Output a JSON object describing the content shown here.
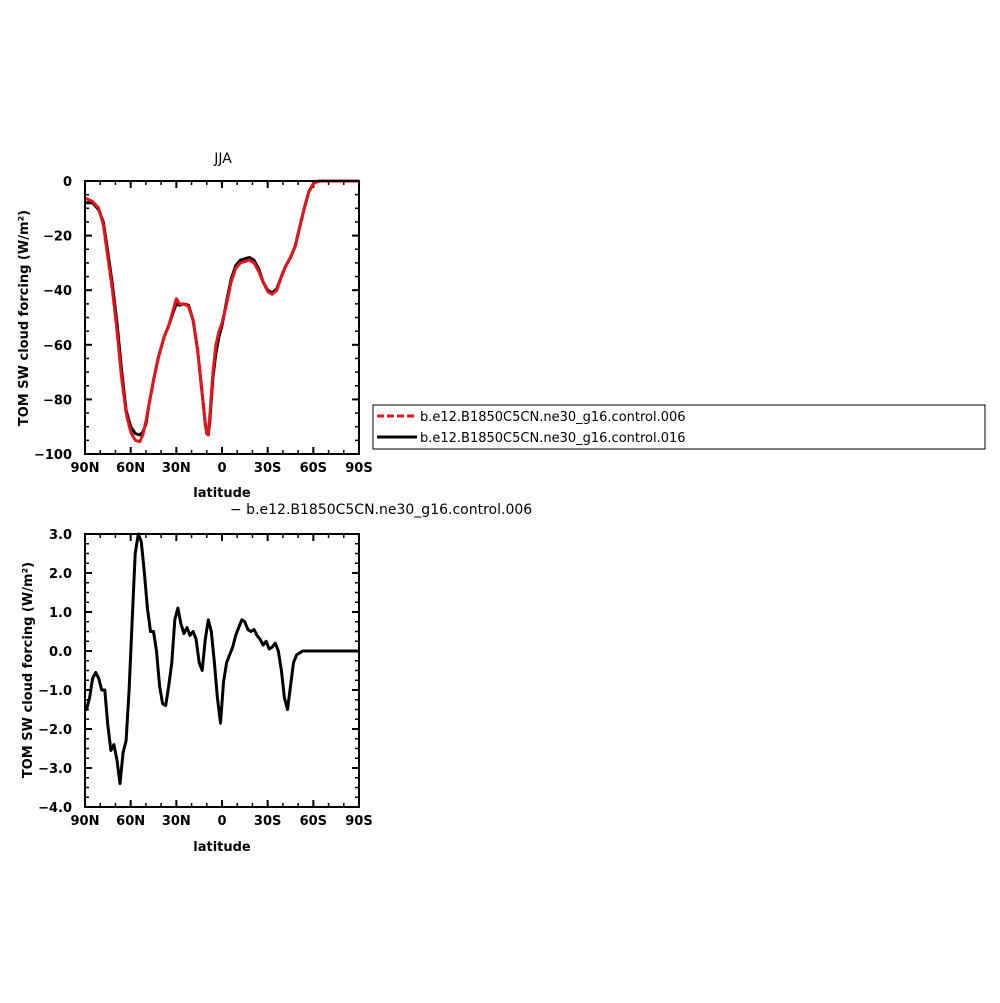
{
  "chart_data": [
    {
      "type": "line",
      "title": "JJA",
      "xlabel": "latitude",
      "ylabel": "TOM SW cloud forcing (W/m²)",
      "xlim": [
        90,
        -90
      ],
      "ylim": [
        -100,
        0
      ],
      "x_tick_values": [
        90,
        60,
        30,
        0,
        -30,
        -60,
        -90
      ],
      "x_tick_labels": [
        "90N",
        "60N",
        "30N",
        "0",
        "30S",
        "60S",
        "90S"
      ],
      "y_tick_values": [
        0,
        -20,
        -40,
        -60,
        -80,
        -100
      ],
      "y_tick_labels": [
        "0",
        "−20",
        "−40",
        "−60",
        "−80",
        "−100"
      ],
      "grid": false,
      "legend_position": "right",
      "series": [
        {
          "name": "b.e12.B1850C5CN.ne30_g16.control.006",
          "color": "#e8141c",
          "dashed": true,
          "x": [
            89,
            85,
            81,
            78,
            75,
            72,
            69,
            66,
            63,
            60,
            57,
            54,
            52,
            50,
            48,
            45,
            42,
            38,
            35,
            32,
            30,
            28,
            25,
            22,
            19,
            16,
            13,
            11,
            10,
            9,
            8,
            6,
            4,
            2,
            0,
            -3,
            -6,
            -9,
            -12,
            -15,
            -18,
            -21,
            -24,
            -27,
            -30,
            -33,
            -36,
            -39,
            -42,
            -45,
            -48,
            -51,
            -54,
            -57,
            -60,
            -62,
            -64,
            -66,
            -70,
            -75,
            -80,
            -85,
            -89
          ],
          "y": [
            -6.5,
            -7.5,
            -10,
            -16,
            -28,
            -40,
            -55,
            -72,
            -85,
            -92,
            -95,
            -95.5,
            -93,
            -88,
            -82,
            -73,
            -65,
            -57,
            -53,
            -47,
            -43,
            -45,
            -45,
            -46,
            -51,
            -62,
            -78,
            -89,
            -92,
            -93,
            -86,
            -70,
            -60,
            -55,
            -52,
            -45,
            -37,
            -32,
            -30,
            -29.5,
            -29,
            -30,
            -33,
            -37,
            -40.5,
            -41.5,
            -40,
            -35,
            -31,
            -28,
            -24,
            -17,
            -10,
            -4,
            -1,
            -0.3,
            0,
            0,
            0,
            0,
            0,
            0,
            0
          ]
        },
        {
          "name": "b.e12.B1850C5CN.ne30_g16.control.016",
          "color": "#000000",
          "dashed": false,
          "x": [
            89,
            85,
            81,
            78,
            75,
            72,
            69,
            66,
            63,
            60,
            57,
            54,
            52,
            50,
            48,
            45,
            42,
            38,
            35,
            32,
            30,
            28,
            25,
            22,
            19,
            16,
            13,
            11,
            10,
            9,
            8,
            6,
            4,
            2,
            0,
            -3,
            -6,
            -9,
            -12,
            -15,
            -18,
            -21,
            -24,
            -27,
            -30,
            -33,
            -36,
            -39,
            -42,
            -45,
            -48,
            -51,
            -54,
            -57,
            -60,
            -62,
            -64,
            -66,
            -70,
            -75,
            -80,
            -85,
            -89
          ],
          "y": [
            -8,
            -8,
            -10.5,
            -15,
            -26,
            -38,
            -52,
            -69,
            -84,
            -90,
            -92.5,
            -93,
            -92,
            -89,
            -82,
            -73,
            -65,
            -57,
            -53,
            -48,
            -45,
            -45.5,
            -45,
            -45.5,
            -51,
            -62,
            -78,
            -89,
            -92.5,
            -93,
            -88,
            -72,
            -63,
            -57,
            -53,
            -44,
            -36,
            -31,
            -29,
            -28.5,
            -28,
            -29,
            -32,
            -37,
            -40,
            -41,
            -39.5,
            -35,
            -31,
            -28,
            -24,
            -17,
            -10,
            -4,
            -1,
            -0.3,
            0,
            0,
            0,
            0,
            0,
            0,
            0
          ]
        }
      ]
    },
    {
      "type": "line",
      "title": "− b.e12.B1850C5CN.ne30_g16.control.006",
      "xlabel": "latitude",
      "ylabel": "TOM SW cloud forcing (W/m²)",
      "xlim": [
        90,
        -90
      ],
      "ylim": [
        -4.0,
        3.0
      ],
      "x_tick_values": [
        90,
        60,
        30,
        0,
        -30,
        -60,
        -90
      ],
      "x_tick_labels": [
        "90N",
        "60N",
        "30N",
        "0",
        "30S",
        "60S",
        "90S"
      ],
      "y_tick_values": [
        3.0,
        2.0,
        1.0,
        0.0,
        -1.0,
        -2.0,
        -3.0,
        -4.0
      ],
      "y_tick_labels": [
        "3.0",
        "2.0",
        "1.0",
        "0.0",
        "−1.0",
        "−2.0",
        "−3.0",
        "−4.0"
      ],
      "grid": false,
      "series": [
        {
          "color": "#000000",
          "dashed": false,
          "x": [
            89,
            87,
            85,
            83,
            81,
            79,
            77,
            75,
            73,
            71,
            69,
            67,
            65,
            63,
            61,
            59,
            57,
            55,
            53,
            51,
            49,
            47,
            45,
            43,
            41,
            39,
            37,
            35,
            33,
            31,
            29,
            27,
            25,
            23,
            21,
            19,
            17,
            15,
            13,
            11,
            9,
            7,
            5,
            3,
            1,
            -1,
            -3,
            -5,
            -7,
            -9,
            -11,
            -13,
            -15,
            -17,
            -19,
            -21,
            -23,
            -25,
            -27,
            -29,
            -31,
            -33,
            -35,
            -37,
            -39,
            -41,
            -43,
            -45,
            -47,
            -49,
            -51,
            -53,
            -55,
            -57,
            -59,
            -61,
            -63,
            -65,
            -67,
            -70,
            -75,
            -80,
            -85,
            -89
          ],
          "y": [
            -1.5,
            -1.2,
            -0.7,
            -0.55,
            -0.7,
            -1.0,
            -1.0,
            -1.9,
            -2.55,
            -2.4,
            -2.8,
            -3.4,
            -2.6,
            -2.3,
            -1.0,
            0.8,
            2.5,
            3.0,
            2.8,
            2.0,
            1.1,
            0.5,
            0.5,
            0.0,
            -0.9,
            -1.35,
            -1.4,
            -0.9,
            -0.3,
            0.8,
            1.1,
            0.7,
            0.45,
            0.6,
            0.4,
            0.5,
            0.3,
            -0.3,
            -0.5,
            0.3,
            0.8,
            0.5,
            -0.3,
            -1.2,
            -1.85,
            -0.8,
            -0.3,
            -0.1,
            0.1,
            0.4,
            0.6,
            0.8,
            0.75,
            0.55,
            0.5,
            0.55,
            0.4,
            0.3,
            0.15,
            0.25,
            0.05,
            0.1,
            0.2,
            0.0,
            -0.5,
            -1.2,
            -1.5,
            -0.9,
            -0.3,
            -0.1,
            -0.05,
            0.0,
            0.0,
            0.0,
            0.0,
            0.0,
            0.0,
            0.0,
            0.0,
            0.0,
            0.0,
            0.0,
            0.0,
            0.0
          ]
        }
      ]
    }
  ]
}
